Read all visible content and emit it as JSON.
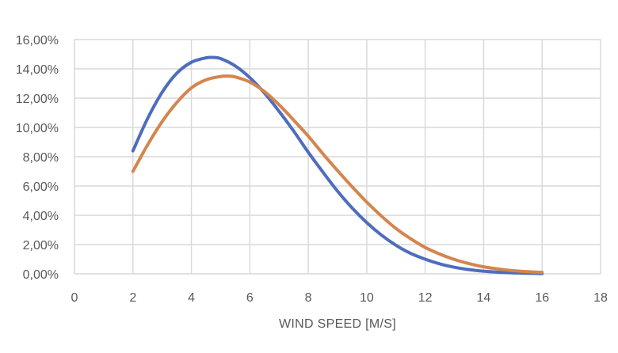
{
  "chart_data": {
    "type": "line",
    "title": "",
    "xlabel": "WIND SPEED [M/S]",
    "ylabel": "",
    "xlim": [
      0,
      18
    ],
    "ylim": [
      0,
      0.16
    ],
    "x_ticks": [
      0,
      2,
      4,
      6,
      8,
      10,
      12,
      14,
      16,
      18
    ],
    "y_ticks": [
      0,
      0.02,
      0.04,
      0.06,
      0.08,
      0.1,
      0.12,
      0.14,
      0.16
    ],
    "y_tick_labels": [
      "0,00%",
      "2,00%",
      "4,00%",
      "6,00%",
      "8,00%",
      "10,00%",
      "12,00%",
      "14,00%",
      "16,00%"
    ],
    "x_tick_labels": [
      "0",
      "2",
      "4",
      "6",
      "8",
      "10",
      "12",
      "14",
      "16",
      "18"
    ],
    "grid": true,
    "legend": "none",
    "series": [
      {
        "color": "#4f6dbd",
        "x": [
          2,
          2.5,
          3,
          3.5,
          4,
          4.5,
          4.75,
          5,
          5.5,
          6,
          6.5,
          7,
          7.5,
          8,
          8.5,
          9,
          9.5,
          10,
          10.5,
          11,
          11.5,
          12,
          12.5,
          13,
          13.5,
          14,
          14.5,
          15,
          15.5,
          16
        ],
        "values": [
          0.084,
          0.106,
          0.124,
          0.137,
          0.1445,
          0.1475,
          0.1478,
          0.147,
          0.142,
          0.134,
          0.1235,
          0.111,
          0.0975,
          0.083,
          0.0695,
          0.0565,
          0.045,
          0.035,
          0.0265,
          0.0195,
          0.014,
          0.01,
          0.0068,
          0.0045,
          0.0029,
          0.0018,
          0.0011,
          0.0007,
          0.0004,
          0.0002
        ]
      },
      {
        "color": "#d4854e",
        "x": [
          2,
          2.5,
          3,
          3.5,
          4,
          4.5,
          5,
          5.25,
          5.5,
          6,
          6.5,
          7,
          7.5,
          8,
          8.5,
          9,
          9.5,
          10,
          10.5,
          11,
          11.5,
          12,
          12.5,
          13,
          13.5,
          14,
          14.5,
          15,
          15.5,
          16
        ],
        "values": [
          0.07,
          0.088,
          0.104,
          0.117,
          0.127,
          0.1325,
          0.1348,
          0.135,
          0.1345,
          0.131,
          0.1245,
          0.1155,
          0.105,
          0.094,
          0.082,
          0.0705,
          0.0595,
          0.049,
          0.0395,
          0.031,
          0.024,
          0.018,
          0.0135,
          0.0098,
          0.007,
          0.0048,
          0.0033,
          0.0022,
          0.0015,
          0.001
        ]
      }
    ]
  }
}
